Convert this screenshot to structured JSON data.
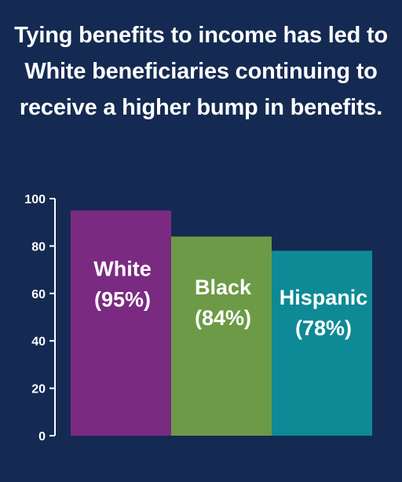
{
  "title": "Tying benefits to income has led to White beneficiaries continuing to receive a higher bump in benefits.",
  "chart_data": {
    "type": "bar",
    "title": "Tying benefits to income has led to White beneficiaries continuing to receive a higher bump in benefits.",
    "categories": [
      "White",
      "Black",
      "Hispanic"
    ],
    "values": [
      95,
      84,
      78
    ],
    "data_labels": [
      "(95%)",
      "(84%)",
      "(78%)"
    ],
    "bar_colors": [
      "#7b2a82",
      "#6d9a46",
      "#0d8a96"
    ],
    "ylim": [
      0,
      100
    ],
    "yticks": [
      "0",
      "20",
      "40",
      "60",
      "80",
      "100"
    ],
    "xlabel": "",
    "ylabel": "",
    "grid": false,
    "legend": "none"
  },
  "colors": {
    "background": "#142a52",
    "text": "#ffffff",
    "axis": "#ffffff"
  }
}
